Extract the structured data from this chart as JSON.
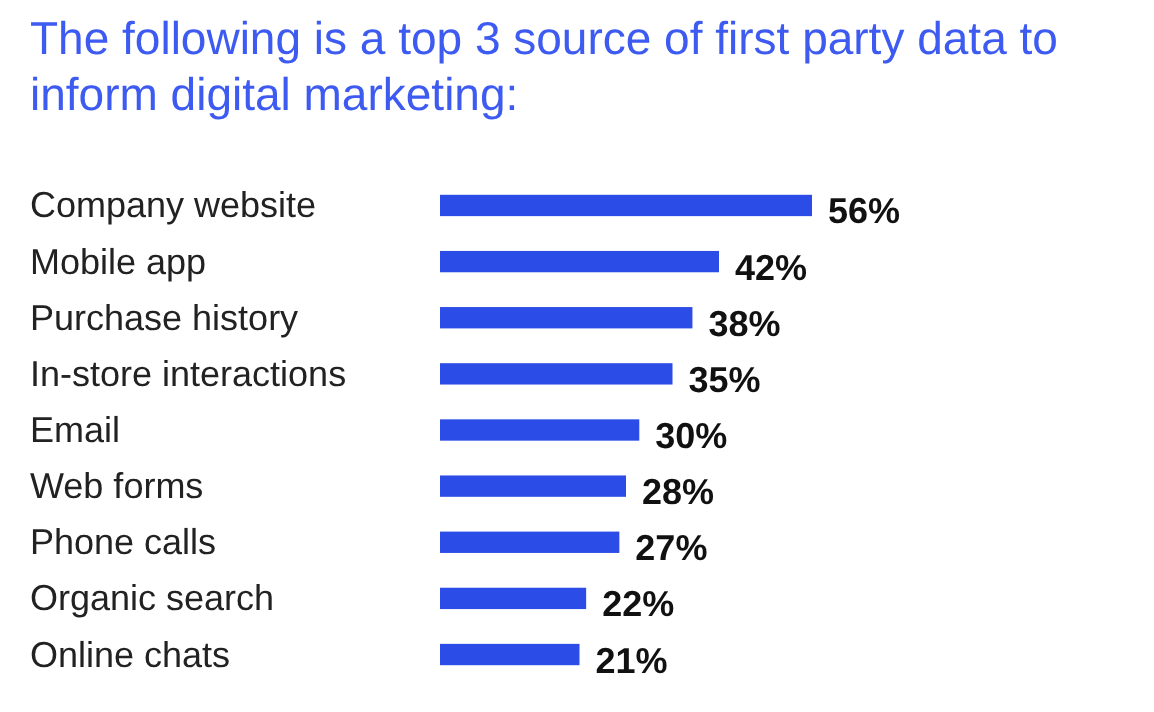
{
  "chart_data": {
    "type": "bar",
    "orientation": "horizontal",
    "title": "The following is a top 3 source of first party data to inform digital marketing:",
    "categories": [
      "Company website",
      "Mobile app",
      "Purchase history",
      "In-store interactions",
      "Email",
      "Web forms",
      "Phone calls",
      "Organic search",
      "Online chats"
    ],
    "values": [
      56,
      42,
      38,
      35,
      30,
      28,
      27,
      22,
      21
    ],
    "value_labels": [
      "56%",
      "42%",
      "38%",
      "35%",
      "30%",
      "28%",
      "27%",
      "22%",
      "21%"
    ],
    "color": "#2b4ce6"
  }
}
